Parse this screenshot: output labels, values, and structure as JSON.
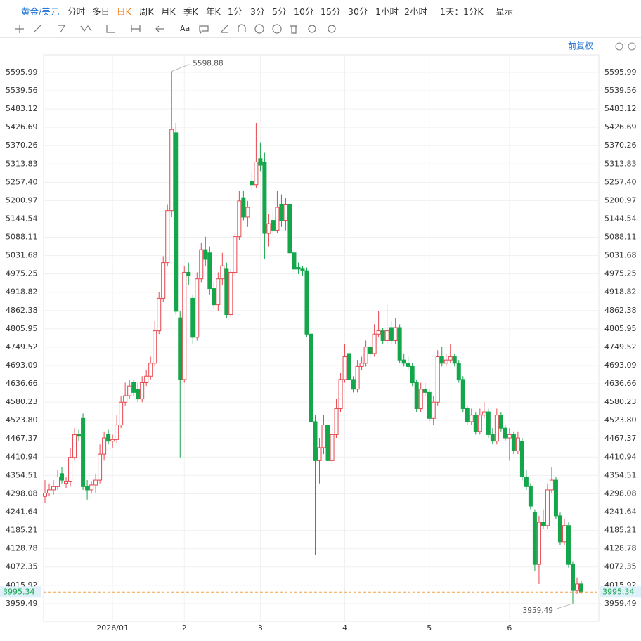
{
  "toolbar": {
    "items": [
      "黄金/美元",
      "分时",
      "多日",
      "日K",
      "周K",
      "月K",
      "季K",
      "年K",
      "1分",
      "3分",
      "5分",
      "10分",
      "15分",
      "30分",
      "1小时",
      "2小时",
      "1天：1分K",
      "显示"
    ],
    "active": 3,
    "text_button": "Aa"
  },
  "adjust": "前复权",
  "chart_data": {
    "type": "candlestick",
    "up_color": "#e8464e",
    "down_color": "#14a64b",
    "grid": true,
    "categories": [
      null,
      null,
      null,
      null,
      null,
      null,
      null,
      null,
      null,
      null,
      null,
      null,
      null,
      null,
      null,
      null,
      "2026/01",
      null,
      null,
      null,
      null,
      null,
      null,
      null,
      null,
      null,
      null,
      null,
      null,
      null,
      null,
      null,
      null,
      "2",
      null,
      null,
      null,
      null,
      null,
      null,
      null,
      null,
      null,
      null,
      null,
      null,
      null,
      null,
      null,
      null,
      null,
      "3",
      null,
      null,
      null,
      null,
      null,
      null,
      null,
      null,
      null,
      null,
      null,
      null,
      null,
      null,
      null,
      null,
      null,
      null,
      null,
      "4",
      null,
      null,
      null,
      null,
      null,
      null,
      null,
      null,
      null,
      null,
      null,
      null,
      null,
      null,
      null,
      null,
      null,
      null,
      null,
      "5",
      null,
      null,
      null,
      null,
      null,
      null,
      null,
      null,
      null,
      null,
      null,
      null,
      null,
      null,
      null,
      null,
      null,
      null,
      "6",
      null,
      null,
      null,
      null,
      null,
      null,
      null,
      null,
      null,
      null,
      null,
      null,
      null,
      null,
      null,
      null,
      null
    ],
    "open": [
      4290,
      4300,
      4310,
      4320,
      4360,
      4330,
      4335,
      4410,
      4480,
      4530,
      4320,
      4310,
      4325,
      4340,
      4420,
      4480,
      4460,
      4465,
      4510,
      4580,
      4600,
      4640,
      4620,
      4590,
      4640,
      4660,
      4700,
      4800,
      4900,
      5010,
      5170,
      5410,
      4840,
      4650,
      4980,
      4900,
      4780,
      4960,
      5050,
      5040,
      4930,
      4880,
      4960,
      4990,
      4850,
      4980,
      5090,
      5210,
      5150,
      5260,
      5250,
      5330,
      5320,
      5100,
      5140,
      5110,
      5190,
      5140,
      5190,
      5040,
      4995,
      4990,
      4985,
      4790,
      4520,
      4400,
      4440,
      4510,
      4400,
      4480,
      4560,
      4650,
      4730,
      4650,
      4620,
      4690,
      4700,
      4750,
      4730,
      4790,
      4800,
      4770,
      4810,
      4770,
      4810,
      4710,
      4700,
      4690,
      4640,
      4560,
      4620,
      4610,
      4530,
      4580,
      4720,
      4700,
      4710,
      4720,
      4700,
      4650,
      4560,
      4520,
      4540,
      4490,
      4540,
      4550,
      4480,
      4460,
      4540,
      4500,
      4470,
      4480,
      4430,
      4460,
      4350,
      4320,
      4240,
      4080,
      4210,
      4200,
      4310,
      4340,
      4230,
      4150,
      4200,
      4080,
      4000,
      4020
    ],
    "high": [
      4340,
      4330,
      4340,
      4370,
      4380,
      4350,
      4440,
      4500,
      4495,
      4545,
      4340,
      4335,
      4360,
      4450,
      4490,
      4495,
      4480,
      4540,
      4600,
      4640,
      4650,
      4650,
      4640,
      4660,
      4680,
      4720,
      4830,
      4920,
      5030,
      5190,
      5598.88,
      5440,
      4860,
      5000,
      5010,
      4910,
      4980,
      5070,
      5090,
      5060,
      4950,
      4980,
      5040,
      5010,
      4990,
      5100,
      5230,
      5230,
      5200,
      5290,
      5440,
      5380,
      5350,
      5160,
      5170,
      5230,
      5220,
      5210,
      5200,
      5060,
      5010,
      5000,
      4995,
      4800,
      4540,
      4470,
      4540,
      4530,
      4500,
      4590,
      4670,
      4760,
      4740,
      4660,
      4710,
      4720,
      4770,
      4760,
      4820,
      4860,
      4810,
      4880,
      4830,
      4840,
      4820,
      4730,
      4720,
      4700,
      4650,
      4640,
      4640,
      4620,
      4600,
      4740,
      4750,
      4730,
      4760,
      4730,
      4710,
      4660,
      4570,
      4560,
      4550,
      4560,
      4580,
      4560,
      4500,
      4560,
      4550,
      4510,
      4500,
      4490,
      4490,
      4470,
      4370,
      4330,
      4250,
      4230,
      4250,
      4330,
      4380,
      4350,
      4240,
      4220,
      4210,
      4090,
      4040,
      4030
    ],
    "low": [
      4270,
      4290,
      4295,
      4310,
      4330,
      4315,
      4320,
      4400,
      4460,
      4310,
      4280,
      4300,
      4300,
      4330,
      4400,
      4450,
      4440,
      4455,
      4500,
      4570,
      4590,
      4600,
      4580,
      4580,
      4630,
      4650,
      4690,
      4790,
      4890,
      5000,
      5150,
      4850,
      4410,
      4640,
      4940,
      4760,
      4770,
      4950,
      5000,
      4910,
      4870,
      4860,
      4940,
      4840,
      4840,
      4970,
      5080,
      5140,
      5120,
      5230,
      5240,
      5290,
      5020,
      5060,
      5090,
      5100,
      5120,
      5110,
      5020,
      4970,
      4975,
      4970,
      4780,
      4500,
      4110,
      4330,
      4420,
      4380,
      4390,
      4470,
      4550,
      4640,
      4640,
      4610,
      4610,
      4680,
      4690,
      4720,
      4720,
      4780,
      4760,
      4760,
      4760,
      4760,
      4700,
      4690,
      4680,
      4630,
      4550,
      4550,
      4600,
      4520,
      4510,
      4570,
      4690,
      4690,
      4700,
      4690,
      4640,
      4550,
      4510,
      4510,
      4480,
      4480,
      4530,
      4470,
      4450,
      4450,
      4490,
      4460,
      4400,
      4420,
      4420,
      4340,
      4310,
      4250,
      4060,
      4020,
      4190,
      4190,
      4300,
      4220,
      4140,
      4140,
      4070,
      3959.49,
      3990,
      3990
    ],
    "close": [
      4300,
      4310,
      4320,
      4350,
      4340,
      4335,
      4410,
      4480,
      4475,
      4320,
      4310,
      4325,
      4340,
      4420,
      4470,
      4460,
      4465,
      4510,
      4580,
      4600,
      4630,
      4610,
      4590,
      4640,
      4660,
      4700,
      4800,
      4900,
      5010,
      5170,
      5420,
      4860,
      4650,
      4980,
      4970,
      4780,
      4960,
      5050,
      5020,
      4930,
      4880,
      4960,
      5000,
      4850,
      4980,
      5090,
      5200,
      5150,
      5180,
      5250,
      5320,
      5310,
      5100,
      5130,
      5110,
      5180,
      5140,
      5190,
      5040,
      4990,
      4990,
      4985,
      4790,
      4520,
      4400,
      4440,
      4510,
      4400,
      4480,
      4560,
      4650,
      4720,
      4650,
      4620,
      4690,
      4700,
      4750,
      4730,
      4790,
      4800,
      4770,
      4800,
      4770,
      4810,
      4710,
      4700,
      4690,
      4640,
      4560,
      4620,
      4610,
      4530,
      4580,
      4720,
      4700,
      4710,
      4720,
      4700,
      4650,
      4560,
      4520,
      4540,
      4490,
      4540,
      4550,
      4480,
      4460,
      4540,
      4500,
      4470,
      4480,
      4430,
      4470,
      4350,
      4320,
      4260,
      4080,
      4210,
      4200,
      4310,
      4340,
      4230,
      4150,
      4200,
      4080,
      4000,
      4020,
      3995.34
    ],
    "ylim": [
      3905,
      5650
    ],
    "yticks": [
      5595.99,
      5539.56,
      5483.12,
      5426.69,
      5370.26,
      5313.83,
      {
        "value": 5257.4,
        "label": "5257.40"
      },
      5200.97,
      5144.54,
      5088.11,
      5031.68,
      4975.25,
      4918.82,
      4862.38,
      4805.95,
      4749.52,
      4693.09,
      4636.66,
      4580.23,
      {
        "value": 4523.8,
        "label": "4523.80"
      },
      4467.37,
      4410.94,
      4354.51,
      4298.08,
      4241.64,
      4185.21,
      4128.78,
      4072.35,
      4015.92,
      3959.49
    ],
    "last_price_color": "#f5a04a"
  }
}
